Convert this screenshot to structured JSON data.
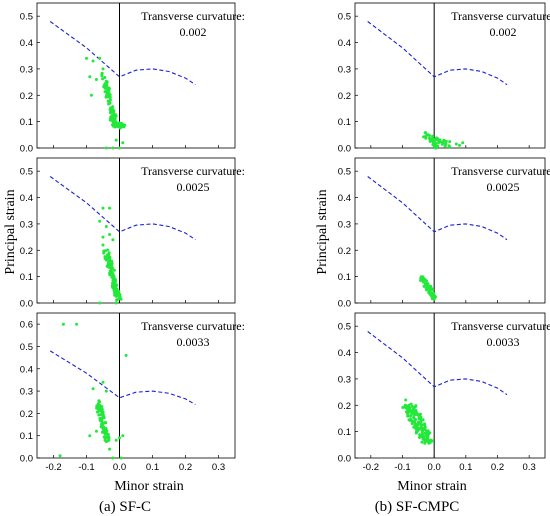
{
  "figure": {
    "ylabel": "Principal strain",
    "xlabel": "Minor strain",
    "captions": [
      "(a) SF-C",
      "(b) SF-CMPC"
    ]
  },
  "colors": {
    "points": "#22e83a",
    "flc": "#1a22d8",
    "axes": "#000000"
  },
  "chart_data": [
    {
      "type": "scatter",
      "panel": "SF-C",
      "annotation_label": "Transverse curvature:",
      "annotation_value": "0.002",
      "xlim": [
        -0.25,
        0.35
      ],
      "ylim": [
        0,
        0.55
      ],
      "xticks": [
        -0.2,
        -0.1,
        0.0,
        0.1,
        0.2,
        0.3
      ],
      "yticks": [
        0.0,
        0.1,
        0.2,
        0.3,
        0.4,
        0.5
      ],
      "ytick_labels": [
        "0.0",
        "0.1",
        "0.2",
        "0.3",
        "0.4",
        "0.5"
      ],
      "show_x_tick_labels": false,
      "flc": {
        "x": [
          -0.21,
          -0.1,
          0.0,
          0.05,
          0.1,
          0.15,
          0.2,
          0.23
        ],
        "y": [
          0.48,
          0.38,
          0.27,
          0.295,
          0.3,
          0.29,
          0.265,
          0.24
        ]
      },
      "clusters": [
        {
          "n": 85,
          "x0": -0.05,
          "x1": -0.01,
          "y0": 0.28,
          "y1": 0.08,
          "spread": 0.008,
          "jitter": 0.012
        },
        {
          "n": 35,
          "x0": -0.02,
          "x1": 0.01,
          "y0": 0.1,
          "y1": 0.08,
          "spread": 0.01,
          "jitter": 0.01
        }
      ],
      "points": [
        {
          "x": -0.1,
          "y": 0.34
        },
        {
          "x": -0.08,
          "y": 0.33
        },
        {
          "x": -0.06,
          "y": 0.34
        },
        {
          "x": -0.09,
          "y": 0.27
        },
        {
          "x": -0.07,
          "y": 0.26
        },
        {
          "x": -0.05,
          "y": 0.3
        },
        {
          "x": -0.085,
          "y": 0.2
        },
        {
          "x": -0.04,
          "y": 0.0
        },
        {
          "x": -0.02,
          "y": 0.0
        },
        {
          "x": 0.0,
          "y": 0.0
        },
        {
          "x": -0.01,
          "y": 0.03
        },
        {
          "x": 0.01,
          "y": 0.02
        }
      ]
    },
    {
      "type": "scatter",
      "panel": "SF-CMPC",
      "annotation_label": "Transverse curvature:",
      "annotation_value": "0.002",
      "xlim": [
        -0.25,
        0.35
      ],
      "ylim": [
        0,
        0.55
      ],
      "xticks": [
        -0.2,
        -0.1,
        0.0,
        0.1,
        0.2,
        0.3
      ],
      "yticks": [
        0.0,
        0.1,
        0.2,
        0.3,
        0.4,
        0.5
      ],
      "ytick_labels": [
        "0.0",
        "0.1",
        "0.2",
        "0.3",
        "0.4",
        "0.5"
      ],
      "show_x_tick_labels": false,
      "flc": {
        "x": [
          -0.21,
          -0.1,
          0.0,
          0.05,
          0.1,
          0.15,
          0.2,
          0.23
        ],
        "y": [
          0.48,
          0.38,
          0.27,
          0.295,
          0.3,
          0.29,
          0.265,
          0.24
        ]
      },
      "clusters": [
        {
          "n": 40,
          "x0": -0.03,
          "x1": 0.05,
          "y0": 0.05,
          "y1": 0.01,
          "spread": 0.006,
          "jitter": 0.012
        },
        {
          "n": 25,
          "x0": -0.01,
          "x1": 0.01,
          "y0": 0.03,
          "y1": 0.0,
          "spread": 0.006,
          "jitter": 0.008
        }
      ],
      "points": [
        {
          "x": 0.08,
          "y": 0.01
        },
        {
          "x": 0.09,
          "y": 0.02
        },
        {
          "x": 0.07,
          "y": 0.015
        }
      ]
    },
    {
      "type": "scatter",
      "panel": "SF-C",
      "annotation_label": "Transverse curvature:",
      "annotation_value": "0.0025",
      "xlim": [
        -0.25,
        0.35
      ],
      "ylim": [
        0,
        0.55
      ],
      "xticks": [
        -0.2,
        -0.1,
        0.0,
        0.1,
        0.2,
        0.3
      ],
      "yticks": [
        0.0,
        0.1,
        0.2,
        0.3,
        0.4,
        0.5
      ],
      "ytick_labels": [
        "0.0",
        "0.1",
        "0.2",
        "0.3",
        "0.4",
        "0.5"
      ],
      "show_x_tick_labels": false,
      "flc": {
        "x": [
          -0.21,
          -0.1,
          0.0,
          0.05,
          0.1,
          0.15,
          0.2,
          0.23
        ],
        "y": [
          0.48,
          0.38,
          0.27,
          0.295,
          0.3,
          0.29,
          0.265,
          0.24
        ]
      },
      "clusters": [
        {
          "n": 90,
          "x0": -0.04,
          "x1": -0.005,
          "y0": 0.2,
          "y1": 0.02,
          "spread": 0.008,
          "jitter": 0.012
        },
        {
          "n": 30,
          "x0": -0.02,
          "x1": 0.0,
          "y0": 0.08,
          "y1": 0.01,
          "spread": 0.006,
          "jitter": 0.01
        }
      ],
      "points": [
        {
          "x": -0.05,
          "y": 0.36
        },
        {
          "x": -0.03,
          "y": 0.36
        },
        {
          "x": -0.06,
          "y": 0.31
        },
        {
          "x": -0.04,
          "y": 0.29
        },
        {
          "x": -0.05,
          "y": 0.25
        },
        {
          "x": -0.03,
          "y": 0.26
        },
        {
          "x": -0.05,
          "y": 0.22
        },
        {
          "x": -0.02,
          "y": 0.24
        },
        {
          "x": -0.06,
          "y": 0.0
        },
        {
          "x": -0.01,
          "y": 0.0
        }
      ]
    },
    {
      "type": "scatter",
      "panel": "SF-CMPC",
      "annotation_label": "Transverse curvature:",
      "annotation_value": "0.0025",
      "xlim": [
        -0.25,
        0.35
      ],
      "ylim": [
        0,
        0.55
      ],
      "xticks": [
        -0.2,
        -0.1,
        0.0,
        0.1,
        0.2,
        0.3
      ],
      "yticks": [
        0.0,
        0.1,
        0.2,
        0.3,
        0.4,
        0.5
      ],
      "ytick_labels": [
        "0.0",
        "0.1",
        "0.2",
        "0.3",
        "0.4",
        "0.5"
      ],
      "show_x_tick_labels": false,
      "flc": {
        "x": [
          -0.21,
          -0.1,
          0.0,
          0.05,
          0.1,
          0.15,
          0.2,
          0.23
        ],
        "y": [
          0.48,
          0.38,
          0.27,
          0.295,
          0.3,
          0.29,
          0.265,
          0.24
        ]
      },
      "clusters": [
        {
          "n": 70,
          "x0": -0.04,
          "x1": 0.0,
          "y0": 0.1,
          "y1": 0.02,
          "spread": 0.008,
          "jitter": 0.01
        }
      ],
      "points": []
    },
    {
      "type": "scatter",
      "panel": "SF-C",
      "annotation_label": "Transverse curvature:",
      "annotation_value": "0.0033",
      "xlim": [
        -0.25,
        0.35
      ],
      "ylim": [
        0,
        0.65
      ],
      "xticks": [
        -0.2,
        -0.1,
        0.0,
        0.1,
        0.2,
        0.3
      ],
      "yticks": [
        0.0,
        0.1,
        0.2,
        0.3,
        0.4,
        0.5,
        0.6
      ],
      "ytick_labels": [
        "0.0",
        "0.1",
        "0.2",
        "0.3",
        "0.4",
        "0.5",
        "0.6"
      ],
      "xtick_labels": [
        "-0.2",
        "-0.1",
        "0.0",
        "0.1",
        "0.2",
        "0.3"
      ],
      "show_x_tick_labels": true,
      "flc": {
        "x": [
          -0.21,
          -0.1,
          0.0,
          0.05,
          0.1,
          0.15,
          0.2,
          0.23
        ],
        "y": [
          0.48,
          0.38,
          0.27,
          0.295,
          0.3,
          0.29,
          0.265,
          0.24
        ]
      },
      "clusters": [
        {
          "n": 90,
          "x0": -0.065,
          "x1": -0.035,
          "y0": 0.25,
          "y1": 0.07,
          "spread": 0.008,
          "jitter": 0.012
        }
      ],
      "points": [
        {
          "x": -0.17,
          "y": 0.6
        },
        {
          "x": -0.13,
          "y": 0.6
        },
        {
          "x": 0.02,
          "y": 0.46
        },
        {
          "x": -0.05,
          "y": 0.34
        },
        {
          "x": -0.04,
          "y": 0.3
        },
        {
          "x": -0.08,
          "y": 0.31
        },
        {
          "x": -0.07,
          "y": 0.12
        },
        {
          "x": -0.09,
          "y": 0.1
        },
        {
          "x": -0.03,
          "y": 0.04
        },
        {
          "x": 0.0,
          "y": 0.09
        },
        {
          "x": 0.01,
          "y": 0.1
        },
        {
          "x": -0.01,
          "y": 0.08
        },
        {
          "x": -0.18,
          "y": 0.01
        },
        {
          "x": -0.02,
          "y": 0.0
        },
        {
          "x": 0.005,
          "y": 0.0
        }
      ]
    },
    {
      "type": "scatter",
      "panel": "SF-CMPC",
      "annotation_label": "Transverse curvature:",
      "annotation_value": "0.0033",
      "xlim": [
        -0.25,
        0.35
      ],
      "ylim": [
        0,
        0.55
      ],
      "xticks": [
        -0.2,
        -0.1,
        0.0,
        0.1,
        0.2,
        0.3
      ],
      "yticks": [
        0.0,
        0.1,
        0.2,
        0.3,
        0.4,
        0.5
      ],
      "ytick_labels": [
        "0.0",
        "0.1",
        "0.2",
        "0.3",
        "0.4",
        "0.5"
      ],
      "xtick_labels": [
        "-0.2",
        "-0.1",
        "0.0",
        "0.1",
        "0.2",
        "0.3"
      ],
      "show_x_tick_labels": true,
      "flc": {
        "x": [
          -0.21,
          -0.1,
          0.0,
          0.05,
          0.1,
          0.15,
          0.2,
          0.23
        ],
        "y": [
          0.48,
          0.38,
          0.27,
          0.295,
          0.3,
          0.29,
          0.265,
          0.24
        ]
      },
      "clusters": [
        {
          "n": 130,
          "x0": -0.08,
          "x1": -0.02,
          "y0": 0.2,
          "y1": 0.06,
          "spread": 0.02,
          "jitter": 0.012
        }
      ],
      "points": [
        {
          "x": -0.09,
          "y": 0.22
        },
        {
          "x": -0.08,
          "y": 0.2
        }
      ]
    }
  ]
}
